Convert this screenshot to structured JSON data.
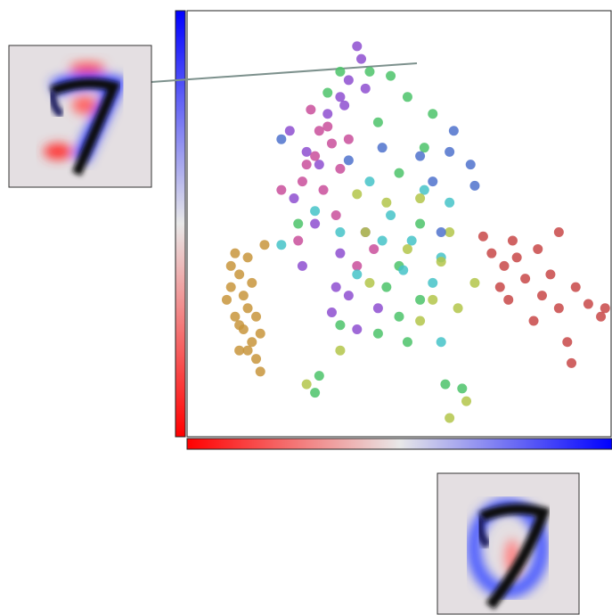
{
  "chart_data": {
    "type": "scatter",
    "xlim": [
      0,
      100
    ],
    "ylim": [
      0,
      100
    ],
    "series": [
      {
        "color": "#c8953c",
        "points": [
          [
            10,
            35
          ],
          [
            12,
            38
          ],
          [
            9,
            32
          ],
          [
            14,
            30
          ],
          [
            11,
            28
          ],
          [
            13,
            25
          ],
          [
            15,
            22
          ],
          [
            12,
            20
          ],
          [
            16,
            18
          ],
          [
            17,
            24
          ],
          [
            10,
            40
          ],
          [
            14,
            42
          ],
          [
            18,
            45
          ],
          [
            15,
            36
          ],
          [
            13,
            33
          ],
          [
            16,
            28
          ],
          [
            12,
            26
          ],
          [
            17,
            15
          ],
          [
            14,
            20
          ],
          [
            11,
            43
          ]
        ]
      },
      {
        "color": "#c84848",
        "points": [
          [
            72,
            43
          ],
          [
            75,
            40
          ],
          [
            78,
            42
          ],
          [
            80,
            37
          ],
          [
            74,
            35
          ],
          [
            83,
            44
          ],
          [
            86,
            38
          ],
          [
            88,
            30
          ],
          [
            92,
            35
          ],
          [
            95,
            31
          ],
          [
            98,
            28
          ],
          [
            99,
            30
          ],
          [
            84,
            33
          ],
          [
            77,
            46
          ],
          [
            70,
            47
          ],
          [
            76,
            32
          ],
          [
            82,
            27
          ],
          [
            90,
            22
          ],
          [
            91,
            17
          ],
          [
            88,
            48
          ]
        ]
      },
      {
        "color": "#8e4fd0",
        "points": [
          [
            40,
            92
          ],
          [
            41,
            89
          ],
          [
            38,
            84
          ],
          [
            36,
            80
          ],
          [
            42,
            82
          ],
          [
            37,
            78
          ],
          [
            33,
            76
          ],
          [
            24,
            72
          ],
          [
            28,
            67
          ],
          [
            31,
            64
          ],
          [
            25,
            56
          ],
          [
            30,
            50
          ],
          [
            36,
            43
          ],
          [
            38,
            33
          ],
          [
            40,
            25
          ],
          [
            45,
            30
          ],
          [
            35,
            35
          ],
          [
            42,
            48
          ],
          [
            27,
            40
          ],
          [
            34,
            29
          ]
        ]
      },
      {
        "color": "#c94f9b",
        "points": [
          [
            29,
            77
          ],
          [
            31,
            72
          ],
          [
            34,
            69
          ],
          [
            30,
            66
          ],
          [
            36,
            63
          ],
          [
            27,
            60
          ],
          [
            22,
            58
          ],
          [
            38,
            70
          ],
          [
            32,
            58
          ],
          [
            40,
            40
          ],
          [
            26,
            46
          ],
          [
            44,
            44
          ],
          [
            35,
            52
          ],
          [
            28,
            64
          ],
          [
            33,
            73
          ]
        ]
      },
      {
        "color": "#4cc36a",
        "points": [
          [
            33,
            81
          ],
          [
            36,
            86
          ],
          [
            43,
            86
          ],
          [
            48,
            85
          ],
          [
            52,
            80
          ],
          [
            58,
            76
          ],
          [
            56,
            68
          ],
          [
            45,
            74
          ],
          [
            50,
            62
          ],
          [
            47,
            35
          ],
          [
            50,
            28
          ],
          [
            52,
            22
          ],
          [
            45,
            24
          ],
          [
            55,
            32
          ],
          [
            61,
            12
          ],
          [
            65,
            11
          ],
          [
            30,
            10
          ],
          [
            31,
            14
          ],
          [
            36,
            26
          ],
          [
            26,
            50
          ],
          [
            55,
            50
          ],
          [
            50,
            40
          ]
        ]
      },
      {
        "color": "#45c3c8",
        "points": [
          [
            22,
            45
          ],
          [
            30,
            53
          ],
          [
            40,
            38
          ],
          [
            48,
            52
          ],
          [
            53,
            46
          ],
          [
            58,
            36
          ],
          [
            60,
            42
          ],
          [
            62,
            55
          ],
          [
            56,
            58
          ],
          [
            36,
            48
          ],
          [
            46,
            46
          ],
          [
            51,
            39
          ],
          [
            60,
            22
          ],
          [
            43,
            60
          ]
        ]
      },
      {
        "color": "#b3c64a",
        "points": [
          [
            40,
            57
          ],
          [
            42,
            48
          ],
          [
            52,
            44
          ],
          [
            60,
            41
          ],
          [
            62,
            48
          ],
          [
            58,
            32
          ],
          [
            64,
            30
          ],
          [
            68,
            36
          ],
          [
            55,
            56
          ],
          [
            47,
            55
          ],
          [
            28,
            12
          ],
          [
            62,
            4
          ],
          [
            66,
            8
          ],
          [
            36,
            20
          ],
          [
            55,
            27
          ],
          [
            43,
            36
          ]
        ]
      },
      {
        "color": "#4f72cc",
        "points": [
          [
            62,
            67
          ],
          [
            67,
            64
          ],
          [
            68,
            59
          ],
          [
            58,
            60
          ],
          [
            55,
            66
          ],
          [
            46,
            68
          ],
          [
            63,
            72
          ],
          [
            22,
            70
          ],
          [
            38,
            65
          ],
          [
            60,
            48
          ]
        ]
      }
    ]
  }
}
